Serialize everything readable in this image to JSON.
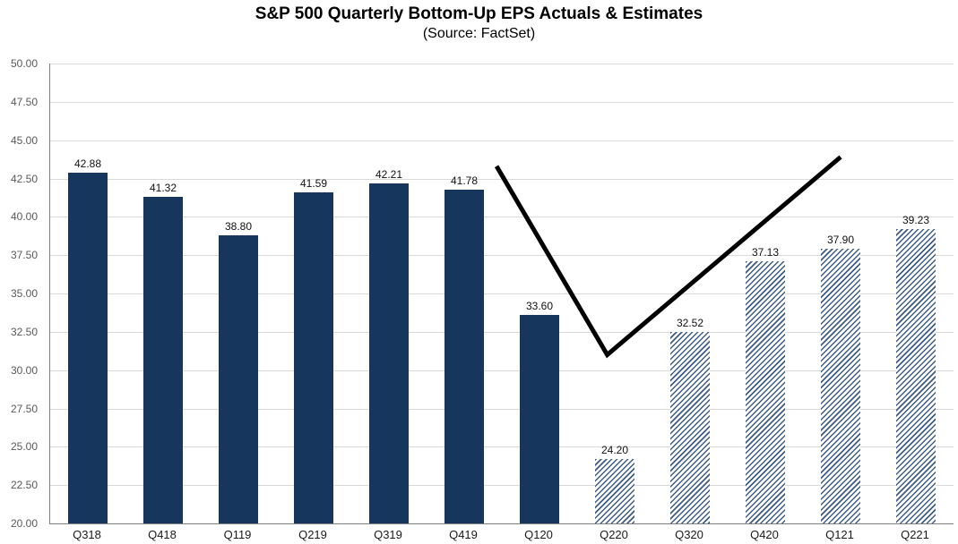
{
  "chart_data": {
    "type": "bar",
    "title": "S&P 500 Quarterly Bottom-Up EPS Actuals & Estimates",
    "subtitle": "(Source: FactSet)",
    "categories": [
      "Q318",
      "Q418",
      "Q119",
      "Q219",
      "Q319",
      "Q419",
      "Q120",
      "Q220",
      "Q320",
      "Q420",
      "Q121",
      "Q221"
    ],
    "values": [
      42.88,
      41.32,
      38.8,
      41.59,
      42.21,
      41.78,
      33.6,
      24.2,
      32.52,
      37.13,
      37.9,
      39.23
    ],
    "value_labels": [
      "42.88",
      "41.32",
      "38.80",
      "41.59",
      "42.21",
      "41.78",
      "33.60",
      "24.20",
      "32.52",
      "37.13",
      "37.90",
      "39.23"
    ],
    "bar_styles": [
      "solid",
      "solid",
      "solid",
      "solid",
      "solid",
      "solid",
      "solid",
      "hatched",
      "hatched",
      "hatched",
      "hatched",
      "hatched"
    ],
    "ylim": [
      20,
      50
    ],
    "ytick_step": 2.5,
    "yticks": [
      "50.00",
      "47.50",
      "45.00",
      "42.50",
      "40.00",
      "37.50",
      "35.00",
      "32.50",
      "30.00",
      "27.50",
      "25.00",
      "22.50",
      "20.00"
    ],
    "grid": true,
    "legend": "none",
    "colors": {
      "bar_solid": "#17365d",
      "hatch_line": "#3d5c85",
      "grid": "#d9d9d9",
      "axis": "#808080",
      "annotation": "#000000",
      "text": "#000000",
      "ytick_text": "#595959"
    },
    "annotation_line": {
      "shape": "v-checkmark",
      "width": 5,
      "points": [
        {
          "x": 5.43,
          "v": 43.3
        },
        {
          "x": 6.9,
          "v": 31.0
        },
        {
          "x": 10.0,
          "v": 43.9
        }
      ]
    }
  }
}
